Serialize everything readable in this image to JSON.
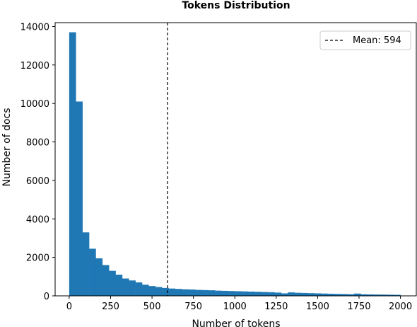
{
  "chart_data": {
    "type": "bar",
    "title": "Tokens Distribution",
    "xlabel": "Number of tokens",
    "ylabel": "Number of docs",
    "xlim": [
      -85,
      2100
    ],
    "ylim": [
      0,
      14200
    ],
    "xticks": [
      0,
      250,
      500,
      750,
      1000,
      1250,
      1500,
      1750,
      2000
    ],
    "yticks": [
      0,
      2000,
      4000,
      6000,
      8000,
      10000,
      12000,
      14000
    ],
    "bin_start": 0,
    "bin_width": 40,
    "values": [
      13700,
      10100,
      3300,
      2450,
      1950,
      1600,
      1300,
      1100,
      900,
      800,
      700,
      580,
      510,
      460,
      410,
      380,
      360,
      340,
      330,
      310,
      300,
      290,
      270,
      260,
      250,
      240,
      230,
      220,
      210,
      200,
      190,
      170,
      130,
      180,
      160,
      150,
      140,
      130,
      120,
      110,
      100,
      95,
      85,
      120,
      80,
      75,
      70,
      65,
      60,
      55
    ],
    "color": "#1f77b4",
    "mean": 594,
    "mean_label": "Mean: 594",
    "legend_position": "upper right",
    "grid": false
  }
}
